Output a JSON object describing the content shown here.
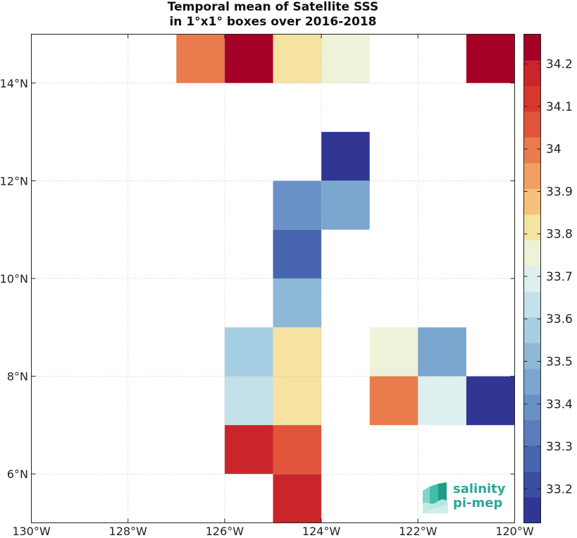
{
  "chart_data": {
    "type": "heatmap",
    "title_lines": [
      "Temporal mean of Satellite SSS",
      "in 1°x1° boxes over 2016-2018"
    ],
    "x_range": [
      -130,
      -120
    ],
    "y_range": [
      5,
      15
    ],
    "x_ticks": [
      -130,
      -128,
      -126,
      -124,
      -122,
      -120
    ],
    "x_tick_labels": [
      "130°W",
      "128°W",
      "126°W",
      "124°W",
      "122°W",
      "120°W"
    ],
    "y_ticks": [
      6,
      8,
      10,
      12,
      14
    ],
    "y_tick_labels": [
      "6°N",
      "8°N",
      "10°N",
      "12°N",
      "14°N"
    ],
    "grid": true,
    "colorbar": {
      "range": [
        33.12,
        34.27
      ],
      "ticks": [
        33.2,
        33.3,
        33.4,
        33.5,
        33.6,
        33.7,
        33.8,
        33.9,
        34.0,
        34.1,
        34.2
      ],
      "tick_labels": [
        "33.2",
        "33.3",
        "33.4",
        "33.5",
        "33.6",
        "33.7",
        "33.8",
        "33.9",
        "34",
        "34.1",
        "34.2"
      ],
      "colors": [
        "#313695",
        "#3b4ea2",
        "#4866b0",
        "#5a7cbc",
        "#6a91c6",
        "#7aa6d0",
        "#8eb8d8",
        "#a6cee2",
        "#c2e1e9",
        "#ddefef",
        "#eef2d8",
        "#f6e2a1",
        "#f6c27a",
        "#f1a062",
        "#ea7b4d",
        "#e0553a",
        "#d6382d",
        "#c9252a",
        "#a50026"
      ]
    },
    "cells": [
      {
        "lon": -127,
        "lat": 14,
        "value": 33.97
      },
      {
        "lon": -126,
        "lat": 14,
        "value": 34.26
      },
      {
        "lon": -125,
        "lat": 14,
        "value": 33.84
      },
      {
        "lon": -124,
        "lat": 14,
        "value": 33.78
      },
      {
        "lon": -121,
        "lat": 14,
        "value": 34.26
      },
      {
        "lon": -124,
        "lat": 12,
        "value": 33.14
      },
      {
        "lon": -125,
        "lat": 11,
        "value": 33.41
      },
      {
        "lon": -124,
        "lat": 11,
        "value": 33.47
      },
      {
        "lon": -125,
        "lat": 10,
        "value": 33.3
      },
      {
        "lon": -125,
        "lat": 9,
        "value": 33.52
      },
      {
        "lon": -126,
        "lat": 8,
        "value": 33.57
      },
      {
        "lon": -125,
        "lat": 8,
        "value": 33.84
      },
      {
        "lon": -123,
        "lat": 8,
        "value": 33.78
      },
      {
        "lon": -122,
        "lat": 8,
        "value": 33.45
      },
      {
        "lon": -126,
        "lat": 7,
        "value": 33.62
      },
      {
        "lon": -125,
        "lat": 7,
        "value": 33.84
      },
      {
        "lon": -123,
        "lat": 7,
        "value": 33.97
      },
      {
        "lon": -122,
        "lat": 7,
        "value": 33.72
      },
      {
        "lon": -121,
        "lat": 7,
        "value": 33.14
      },
      {
        "lon": -126,
        "lat": 6,
        "value": 34.15
      },
      {
        "lon": -125,
        "lat": 6,
        "value": 34.05
      },
      {
        "lon": -125,
        "lat": 5,
        "value": 34.15
      }
    ]
  },
  "logo": {
    "line1": "salinity",
    "line2": "pi-mep"
  }
}
